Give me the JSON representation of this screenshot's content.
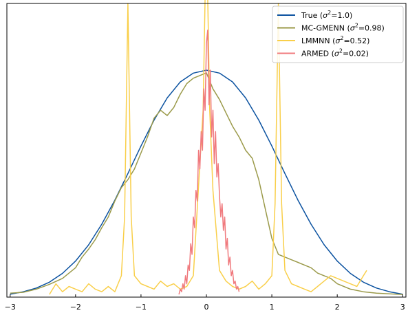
{
  "chart_data": {
    "type": "line",
    "title": "",
    "xlabel": "",
    "ylabel": "",
    "xlim": [
      -3.05,
      3.05
    ],
    "ylim": [
      0,
      1.1
    ],
    "xticks": [
      -3,
      -2,
      -1,
      0,
      1,
      2,
      3
    ],
    "xtick_labels": [
      "−3",
      "−2",
      "−1",
      "0",
      "1",
      "2",
      "3"
    ],
    "yticks_visible": false,
    "grid": false,
    "legend_position": "top-right",
    "series": [
      {
        "key": "true",
        "name": "True (σ²=1.0)",
        "legend": {
          "prefix": "True (",
          "sigma": "σ",
          "sup": "2",
          "suffix": "=1.0)"
        },
        "color": "#0b52a0",
        "x": [
          -3.0,
          -2.8,
          -2.6,
          -2.4,
          -2.2,
          -2.0,
          -1.8,
          -1.6,
          -1.4,
          -1.2,
          -1.0,
          -0.8,
          -0.6,
          -0.4,
          -0.2,
          0.0,
          0.2,
          0.4,
          0.6,
          0.8,
          1.0,
          1.2,
          1.4,
          1.6,
          1.8,
          2.0,
          2.2,
          2.4,
          2.6,
          2.8,
          3.0
        ],
        "y": [
          0.011,
          0.02,
          0.034,
          0.056,
          0.089,
          0.135,
          0.196,
          0.273,
          0.363,
          0.463,
          0.566,
          0.663,
          0.746,
          0.806,
          0.839,
          0.85,
          0.839,
          0.806,
          0.746,
          0.663,
          0.566,
          0.463,
          0.363,
          0.273,
          0.196,
          0.135,
          0.089,
          0.056,
          0.034,
          0.02,
          0.011
        ]
      },
      {
        "key": "mcgmenn",
        "name": "MC-GMENN (σ²=0.98)",
        "legend": {
          "prefix": "MC-GMENN (",
          "sigma": "σ",
          "sup": "2",
          "suffix": "=0.98)"
        },
        "color": "#9b9a4a",
        "x": [
          -3.0,
          -2.8,
          -2.6,
          -2.4,
          -2.2,
          -2.0,
          -1.9,
          -1.8,
          -1.7,
          -1.6,
          -1.5,
          -1.4,
          -1.3,
          -1.2,
          -1.1,
          -1.0,
          -0.9,
          -0.8,
          -0.7,
          -0.6,
          -0.5,
          -0.4,
          -0.3,
          -0.2,
          -0.1,
          0.0,
          0.1,
          0.2,
          0.3,
          0.4,
          0.5,
          0.6,
          0.7,
          0.8,
          0.9,
          1.0,
          1.1,
          1.2,
          1.3,
          1.4,
          1.5,
          1.6,
          1.7,
          1.8,
          1.9,
          2.0,
          2.2,
          2.4,
          2.6,
          2.8,
          3.0
        ],
        "y": [
          0.015,
          0.018,
          0.03,
          0.048,
          0.07,
          0.11,
          0.15,
          0.18,
          0.215,
          0.26,
          0.3,
          0.36,
          0.41,
          0.44,
          0.48,
          0.54,
          0.6,
          0.67,
          0.7,
          0.68,
          0.71,
          0.76,
          0.8,
          0.82,
          0.83,
          0.84,
          0.78,
          0.74,
          0.69,
          0.64,
          0.6,
          0.55,
          0.52,
          0.44,
          0.33,
          0.22,
          0.16,
          0.15,
          0.14,
          0.13,
          0.12,
          0.11,
          0.09,
          0.08,
          0.07,
          0.05,
          0.03,
          0.02,
          0.015,
          0.012,
          0.01
        ]
      },
      {
        "key": "lmmnn",
        "name": "LMMNN (σ²=0.52)",
        "legend": {
          "prefix": "LMMNN (",
          "sigma": "σ",
          "sup": "2",
          "suffix": "=0.52)"
        },
        "color": "#f9cf4a",
        "x": [
          -2.4,
          -2.3,
          -2.2,
          -2.1,
          -2.0,
          -1.9,
          -1.8,
          -1.7,
          -1.6,
          -1.5,
          -1.4,
          -1.3,
          -1.25,
          -1.2,
          -1.15,
          -1.1,
          -1.0,
          -0.9,
          -0.8,
          -0.7,
          -0.6,
          -0.5,
          -0.4,
          -0.3,
          -0.2,
          -0.1,
          -0.05,
          0.0,
          0.05,
          0.1,
          0.2,
          0.3,
          0.4,
          0.5,
          0.6,
          0.7,
          0.8,
          0.9,
          1.0,
          1.05,
          1.1,
          1.15,
          1.2,
          1.3,
          1.4,
          1.5,
          1.6,
          1.7,
          1.8,
          1.9,
          2.0,
          2.1,
          2.2,
          2.3,
          2.4,
          2.45
        ],
        "y": [
          0.01,
          0.05,
          0.02,
          0.04,
          0.03,
          0.02,
          0.05,
          0.03,
          0.02,
          0.04,
          0.02,
          0.08,
          0.3,
          1.1,
          0.3,
          0.08,
          0.05,
          0.04,
          0.03,
          0.06,
          0.04,
          0.05,
          0.03,
          0.04,
          0.08,
          0.5,
          0.7,
          1.4,
          0.7,
          0.4,
          0.1,
          0.06,
          0.04,
          0.03,
          0.04,
          0.06,
          0.03,
          0.05,
          0.08,
          0.35,
          1.1,
          0.35,
          0.1,
          0.05,
          0.04,
          0.03,
          0.02,
          0.04,
          0.06,
          0.08,
          0.07,
          0.06,
          0.05,
          0.04,
          0.08,
          0.1
        ]
      },
      {
        "key": "armed",
        "name": "ARMED (σ²=0.02)",
        "legend": {
          "prefix": "ARMED (",
          "sigma": "σ",
          "sup": "2",
          "suffix": "=0.02)"
        },
        "color": "#f07a7e",
        "x": [
          -0.42,
          -0.4,
          -0.38,
          -0.36,
          -0.34,
          -0.32,
          -0.3,
          -0.28,
          -0.26,
          -0.24,
          -0.22,
          -0.2,
          -0.18,
          -0.16,
          -0.14,
          -0.12,
          -0.1,
          -0.08,
          -0.06,
          -0.04,
          -0.02,
          0.0,
          0.02,
          0.04,
          0.06,
          0.08,
          0.1,
          0.12,
          0.14,
          0.16,
          0.18,
          0.2,
          0.22,
          0.24,
          0.26,
          0.28,
          0.3,
          0.32,
          0.34,
          0.36,
          0.38,
          0.4,
          0.42,
          0.44,
          0.46,
          0.48,
          0.5
        ],
        "y": [
          0.01,
          0.03,
          0.02,
          0.05,
          0.03,
          0.08,
          0.05,
          0.12,
          0.1,
          0.2,
          0.16,
          0.3,
          0.26,
          0.4,
          0.36,
          0.55,
          0.48,
          0.62,
          0.55,
          0.78,
          0.7,
          0.95,
          1.0,
          0.72,
          0.85,
          0.6,
          0.7,
          0.5,
          0.62,
          0.45,
          0.5,
          0.38,
          0.3,
          0.35,
          0.25,
          0.3,
          0.18,
          0.22,
          0.12,
          0.15,
          0.08,
          0.1,
          0.05,
          0.06,
          0.03,
          0.04,
          0.02
        ]
      }
    ]
  }
}
